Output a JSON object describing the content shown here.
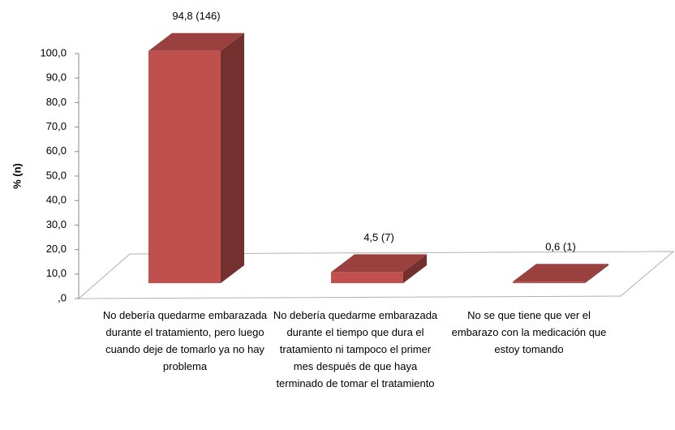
{
  "chart_data": {
    "type": "bar3d",
    "y_label": "% (n)",
    "categories": [
      "No debería quedarme embarazada durante el tratamiento, pero luego cuando deje de tomarlo ya no hay problema",
      "No debería quedarme embarazada durante el tiempo que dura el tratamiento ni tampoco el primer mes después de que haya terminado de tomar el tratamiento",
      "No se que tiene que ver el embarazo con la medicación que estoy tomando"
    ],
    "values": [
      94.8,
      4.5,
      0.6
    ],
    "value_labels": [
      "94,8 (146)",
      "4,5 (7)",
      "0,6 (1)"
    ],
    "color": "#c0504d",
    "ylim": [
      0,
      100
    ],
    "yticks": [
      {
        "value": 0,
        "label": ",0"
      },
      {
        "value": 10,
        "label": "10,0"
      },
      {
        "value": 20,
        "label": "20,0"
      },
      {
        "value": 30,
        "label": "30,0"
      },
      {
        "value": 40,
        "label": "40,0"
      },
      {
        "value": 50,
        "label": "50,0"
      },
      {
        "value": 60,
        "label": "60,0"
      },
      {
        "value": 70,
        "label": "70,0"
      },
      {
        "value": 80,
        "label": "80,0"
      },
      {
        "value": 90,
        "label": "90,0"
      },
      {
        "value": 100,
        "label": "100,0"
      }
    ]
  }
}
